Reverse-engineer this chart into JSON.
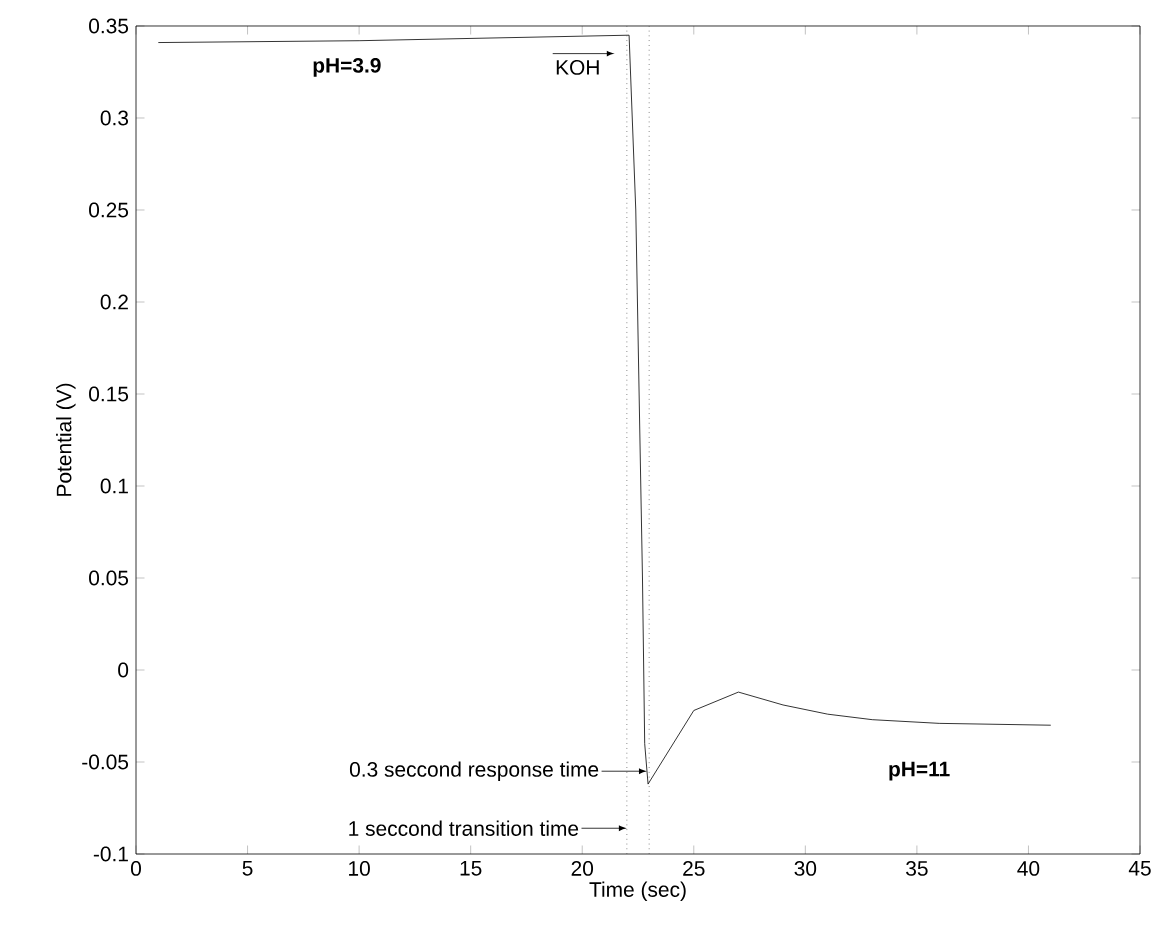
{
  "chart_data": {
    "type": "line",
    "xlabel": "Time (sec)",
    "ylabel": "Potential (V)",
    "x": [
      1,
      10,
      22.1,
      22.4,
      22.7,
      22.8,
      22.95,
      25,
      27,
      29,
      31,
      33,
      36,
      41
    ],
    "series": [
      {
        "color": "#000000",
        "values": [
          0.341,
          0.342,
          0.345,
          0.25,
          0.05,
          -0.04,
          -0.062,
          -0.022,
          -0.012,
          -0.019,
          -0.024,
          -0.027,
          -0.029,
          -0.03
        ]
      }
    ],
    "xlim": [
      0,
      45
    ],
    "ylim": [
      -0.1,
      0.35
    ],
    "xticks": [
      0,
      5,
      10,
      15,
      20,
      25,
      30,
      35,
      40,
      45
    ],
    "yticks": [
      -0.1,
      -0.05,
      0,
      0.05,
      0.1,
      0.15,
      0.2,
      0.25,
      0.3,
      0.35
    ],
    "ref_lines": [
      {
        "axis": "x",
        "value": 22,
        "line_style": "dotted"
      },
      {
        "axis": "x",
        "value": 23,
        "line_style": "dotted"
      }
    ],
    "annotations": [
      "**pH=3.9**",
      "KOH",
      {
        "text": "0.3 seccond response time",
        "x": 22.9,
        "y": -0.055
      },
      {
        "text": "1 seccond transition time",
        "x": 22,
        "y": -0.086
      },
      "**pH=11**"
    ],
    "grid": false,
    "legend": false,
    "marker": "none",
    "line_style": "solid"
  }
}
